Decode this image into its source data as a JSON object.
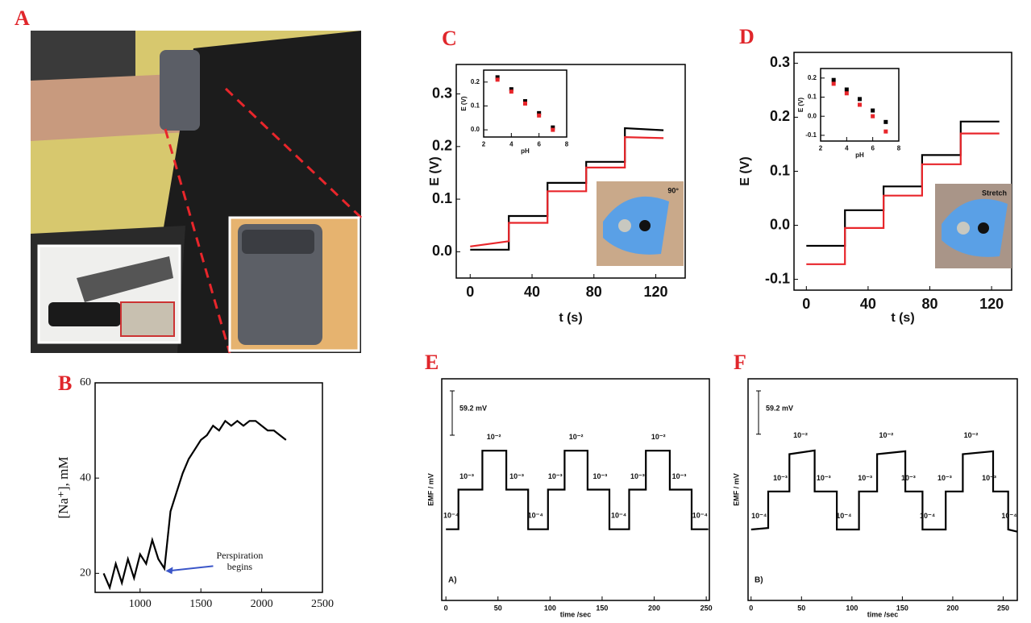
{
  "panel_a": {
    "label": "A"
  },
  "chart_data": [
    {
      "label": "B",
      "type": "line",
      "ylabel": "[Na⁺], mM",
      "color": "#000000",
      "xlim": [
        630,
        2500
      ],
      "ylim": [
        16,
        60
      ],
      "xticks": [
        1000,
        1500,
        2000,
        2500
      ],
      "yticks": [
        20,
        40,
        60
      ],
      "x": [
        700,
        750,
        800,
        850,
        900,
        950,
        1000,
        1050,
        1100,
        1150,
        1200,
        1250,
        1300,
        1350,
        1400,
        1450,
        1500,
        1550,
        1600,
        1650,
        1700,
        1750,
        1800,
        1850,
        1900,
        1950,
        2000,
        2050,
        2100,
        2150,
        2200
      ],
      "series": [
        {
          "color": "#000000",
          "values": [
            20,
            17,
            22,
            18,
            23,
            19,
            24,
            22,
            27,
            23,
            21,
            33,
            37,
            41,
            44,
            46,
            48,
            49,
            51,
            50,
            52,
            51,
            52,
            51,
            52,
            52,
            51,
            50,
            50,
            49,
            48
          ]
        }
      ],
      "annotation": {
        "lines": [
          "Perspiration",
          "begins"
        ],
        "x": 1190,
        "y": 20.5
      }
    },
    {
      "label": "C",
      "type": "line",
      "xlabel": "t (s)",
      "ylabel": "E (V)",
      "xlim": [
        -9,
        139
      ],
      "ylim": [
        -0.05,
        0.356
      ],
      "xticks": [
        0,
        40,
        80,
        120
      ],
      "yticks": [
        {
          "value": 0,
          "label": "0.0"
        },
        0.1,
        0.2,
        0.3
      ],
      "x": [
        0,
        25,
        25,
        50,
        50,
        75,
        75,
        100,
        100,
        125
      ],
      "series": [
        {
          "color": "#000000",
          "values": [
            0.004,
            0.004,
            0.068,
            0.068,
            0.131,
            0.131,
            0.171,
            0.171,
            0.235,
            0.231
          ]
        },
        {
          "color": "#e8262b",
          "values": [
            0.01,
            0.02,
            0.055,
            0.055,
            0.115,
            0.115,
            0.16,
            0.16,
            0.218,
            0.216
          ]
        }
      ],
      "photo_label": "90°",
      "inset": {
        "type": "scatter",
        "xlabel": "pH",
        "ylabel": "E (V)",
        "xlim": [
          2,
          8
        ],
        "ylim": [
          -0.03,
          0.25
        ],
        "xticks": [
          2,
          4,
          6,
          8
        ],
        "yticks": [
          {
            "value": 0,
            "label": "0.0"
          },
          0.1,
          0.2
        ],
        "x": [
          3,
          4,
          5,
          6,
          7
        ],
        "series": [
          {
            "color": "#000000",
            "values": [
              0.22,
              0.17,
              0.12,
              0.07,
              0.01
            ]
          },
          {
            "color": "#e8262b",
            "values": [
              0.21,
              0.16,
              0.11,
              0.06,
              0.0
            ]
          }
        ]
      }
    },
    {
      "label": "D",
      "type": "line",
      "xlabel": "t (s)",
      "ylabel": "E (V)",
      "xlim": [
        -8,
        133
      ],
      "ylim": [
        -0.12,
        0.32
      ],
      "xticks": [
        0,
        40,
        80,
        120
      ],
      "yticks": [
        -0.1,
        {
          "value": 0,
          "label": "0.0"
        },
        0.1,
        0.2,
        0.3
      ],
      "x": [
        0,
        25,
        25,
        50,
        50,
        75,
        75,
        100,
        100,
        125
      ],
      "series": [
        {
          "color": "#000000",
          "values": [
            -0.038,
            -0.038,
            0.028,
            0.028,
            0.072,
            0.072,
            0.13,
            0.13,
            0.192,
            0.192
          ]
        },
        {
          "color": "#e8262b",
          "values": [
            -0.072,
            -0.072,
            -0.005,
            -0.005,
            0.055,
            0.055,
            0.113,
            0.113,
            0.17,
            0.17
          ]
        }
      ],
      "photo_label": "Stretch",
      "inset": {
        "type": "scatter",
        "xlabel": "pH",
        "ylabel": "E (V)",
        "xlim": [
          2,
          8
        ],
        "ylim": [
          -0.13,
          0.25
        ],
        "xticks": [
          2,
          4,
          6,
          8
        ],
        "yticks": [
          -0.1,
          {
            "value": 0,
            "label": "0.0"
          },
          0.1,
          0.2
        ],
        "x": [
          3,
          4,
          5,
          6,
          7
        ],
        "series": [
          {
            "color": "#000000",
            "values": [
              0.19,
              0.14,
              0.09,
              0.03,
              -0.03
            ]
          },
          {
            "color": "#e8262b",
            "values": [
              0.17,
              0.12,
              0.06,
              0.0,
              -0.08
            ]
          }
        ]
      }
    },
    {
      "label": "E",
      "type": "line",
      "xlabel": "time /sec",
      "ylabel": "EMF / mV",
      "panel_note": "A)",
      "xlim": [
        -4,
        253
      ],
      "ylim": [
        -95,
        201
      ],
      "xticks": [
        0,
        50,
        100,
        150,
        200,
        250
      ],
      "scale_bar": {
        "value": 59.2,
        "label": "59.2 mV"
      },
      "x": [
        0,
        12,
        12,
        35,
        35,
        58,
        58,
        79,
        79,
        98,
        98,
        114,
        114,
        136,
        136,
        157,
        157,
        176,
        176,
        192,
        192,
        215,
        215,
        236,
        236,
        252
      ],
      "series": [
        {
          "color": "#000000",
          "values": [
            0,
            0,
            53,
            53,
            105,
            105,
            53,
            53,
            0,
            0,
            53,
            53,
            105,
            105,
            53,
            53,
            0,
            0,
            53,
            53,
            105,
            105,
            53,
            53,
            0,
            0
          ]
        }
      ],
      "step_labels": [
        {
          "text": "10⁻⁴",
          "x": 5,
          "y": 18
        },
        {
          "text": "10⁻³",
          "x": 20,
          "y": 70
        },
        {
          "text": "10⁻²",
          "x": 46,
          "y": 123
        },
        {
          "text": "10⁻³",
          "x": 68,
          "y": 70
        },
        {
          "text": "10⁻⁴",
          "x": 86,
          "y": 18
        },
        {
          "text": "10⁻³",
          "x": 105,
          "y": 70
        },
        {
          "text": "10⁻²",
          "x": 125,
          "y": 123
        },
        {
          "text": "10⁻³",
          "x": 148,
          "y": 70
        },
        {
          "text": "10⁻⁴",
          "x": 166,
          "y": 18
        },
        {
          "text": "10⁻³",
          "x": 184,
          "y": 70
        },
        {
          "text": "10⁻²",
          "x": 204,
          "y": 123
        },
        {
          "text": "10⁻³",
          "x": 224,
          "y": 70
        },
        {
          "text": "10⁻⁴",
          "x": 244,
          "y": 18
        }
      ]
    },
    {
      "label": "F",
      "type": "line",
      "xlabel": "time /sec",
      "ylabel": "EMF / mV",
      "panel_note": "B)",
      "xlim": [
        -3,
        264
      ],
      "ylim": [
        -97,
        206
      ],
      "xticks": [
        0,
        50,
        100,
        150,
        200,
        250
      ],
      "scale_bar": {
        "value": 59.2,
        "label": "59.2 mV"
      },
      "x": [
        0,
        17,
        17,
        38,
        38,
        63,
        63,
        85,
        85,
        107,
        107,
        125,
        125,
        153,
        153,
        170,
        170,
        193,
        193,
        210,
        210,
        240,
        240,
        255,
        255,
        264
      ],
      "series": [
        {
          "color": "#000000",
          "values": [
            0,
            2,
            52,
            52,
            103,
            108,
            52,
            52,
            0,
            0,
            52,
            52,
            103,
            107,
            52,
            52,
            0,
            0,
            52,
            52,
            103,
            107,
            52,
            52,
            0,
            -3
          ]
        }
      ],
      "step_labels": [
        {
          "text": "10⁻⁴",
          "x": 8,
          "y": 18
        },
        {
          "text": "10⁻³",
          "x": 29,
          "y": 70
        },
        {
          "text": "10⁻²",
          "x": 49,
          "y": 128
        },
        {
          "text": "10⁻³",
          "x": 72,
          "y": 70
        },
        {
          "text": "10⁻⁴",
          "x": 92,
          "y": 18
        },
        {
          "text": "10⁻³",
          "x": 113,
          "y": 70
        },
        {
          "text": "10⁻²",
          "x": 134,
          "y": 128
        },
        {
          "text": "10⁻³",
          "x": 156,
          "y": 70
        },
        {
          "text": "10⁻⁴",
          "x": 175,
          "y": 18
        },
        {
          "text": "10⁻³",
          "x": 192,
          "y": 70
        },
        {
          "text": "10⁻²",
          "x": 218,
          "y": 128
        },
        {
          "text": "10⁻³",
          "x": 236,
          "y": 70
        },
        {
          "text": "10⁻⁴",
          "x": 256,
          "y": 18
        }
      ]
    }
  ]
}
